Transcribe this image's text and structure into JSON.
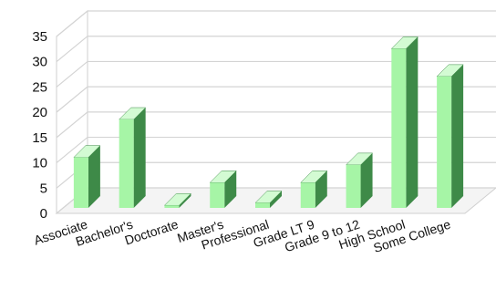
{
  "chart_data": {
    "type": "bar",
    "categories": [
      "Associate",
      "Bachelor's",
      "Doctorate",
      "Master's",
      "Professional",
      "Grade LT 9",
      "Grade 9 to 12",
      "High School",
      "Some College"
    ],
    "values": [
      10,
      17.5,
      0.5,
      5,
      1,
      5,
      8.5,
      31.5,
      26
    ],
    "ylim": [
      0,
      35
    ],
    "yticks": [
      0,
      5,
      10,
      15,
      20,
      25,
      30,
      35
    ],
    "grid": true,
    "style": "3d-column",
    "colors": {
      "front": "#a6f5a6",
      "side": "#3e8a48",
      "top": "#d3fbd3",
      "grid": "#d4d4d4",
      "wall": "#ffffff"
    }
  }
}
